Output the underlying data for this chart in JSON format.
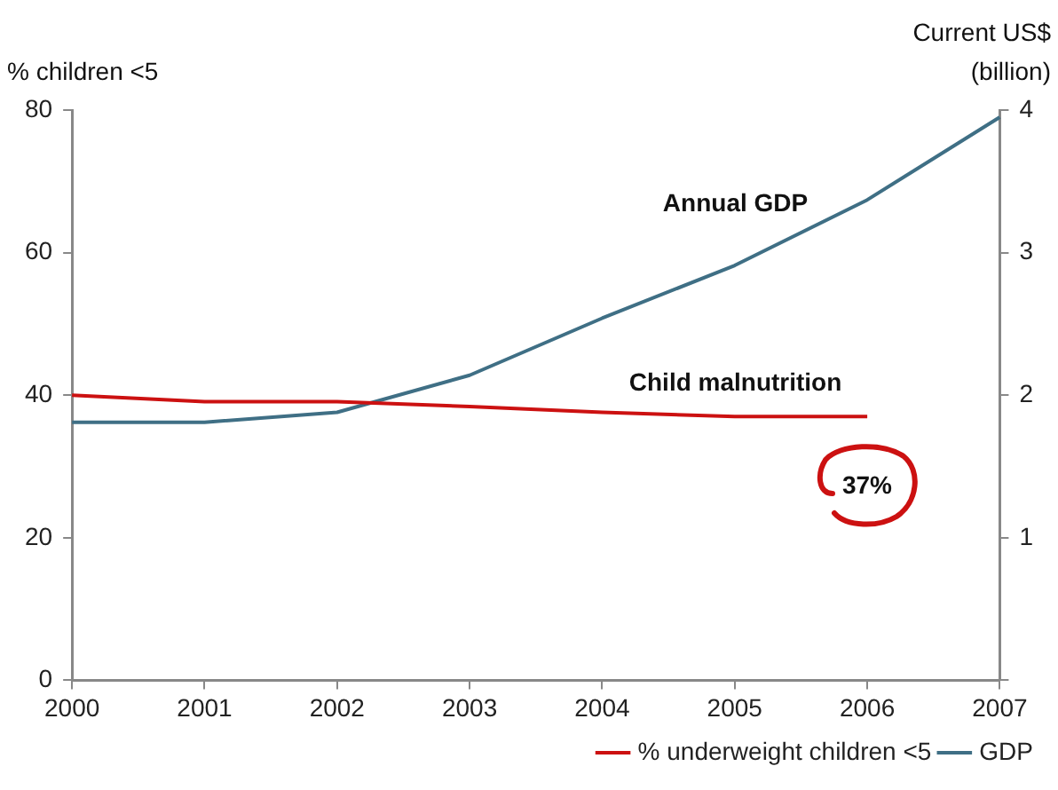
{
  "chart_data": {
    "type": "line",
    "ylabel": "% children <5",
    "y2label": "Current US$\n(billion)",
    "categories": [
      "2000",
      "2001",
      "2002",
      "2003",
      "2004",
      "2005",
      "2006",
      "2007"
    ],
    "series": [
      {
        "name": "% underweight children <5",
        "color": "#cc1111",
        "values": [
          40,
          39.1,
          39.1,
          38.4,
          37.6,
          37,
          37,
          null
        ]
      },
      {
        "name": "GDP",
        "color": "#3f6f85",
        "axis": "y2",
        "values": [
          1.81,
          1.81,
          1.88,
          2.14,
          2.54,
          2.91,
          3.37,
          3.95
        ]
      }
    ],
    "ylim": [
      0,
      80
    ],
    "yticks": [
      0,
      20,
      40,
      60,
      80
    ],
    "y2lim": [
      0,
      4
    ],
    "y2ticks": [
      {
        "value": 0,
        "label": null
      },
      1,
      2,
      3,
      4
    ],
    "grid": false,
    "legend": "bottom right",
    "marker": "none",
    "line_style": "solid",
    "annotations": [
      "Annual GDP",
      "Child malnutrition",
      "37%"
    ]
  }
}
